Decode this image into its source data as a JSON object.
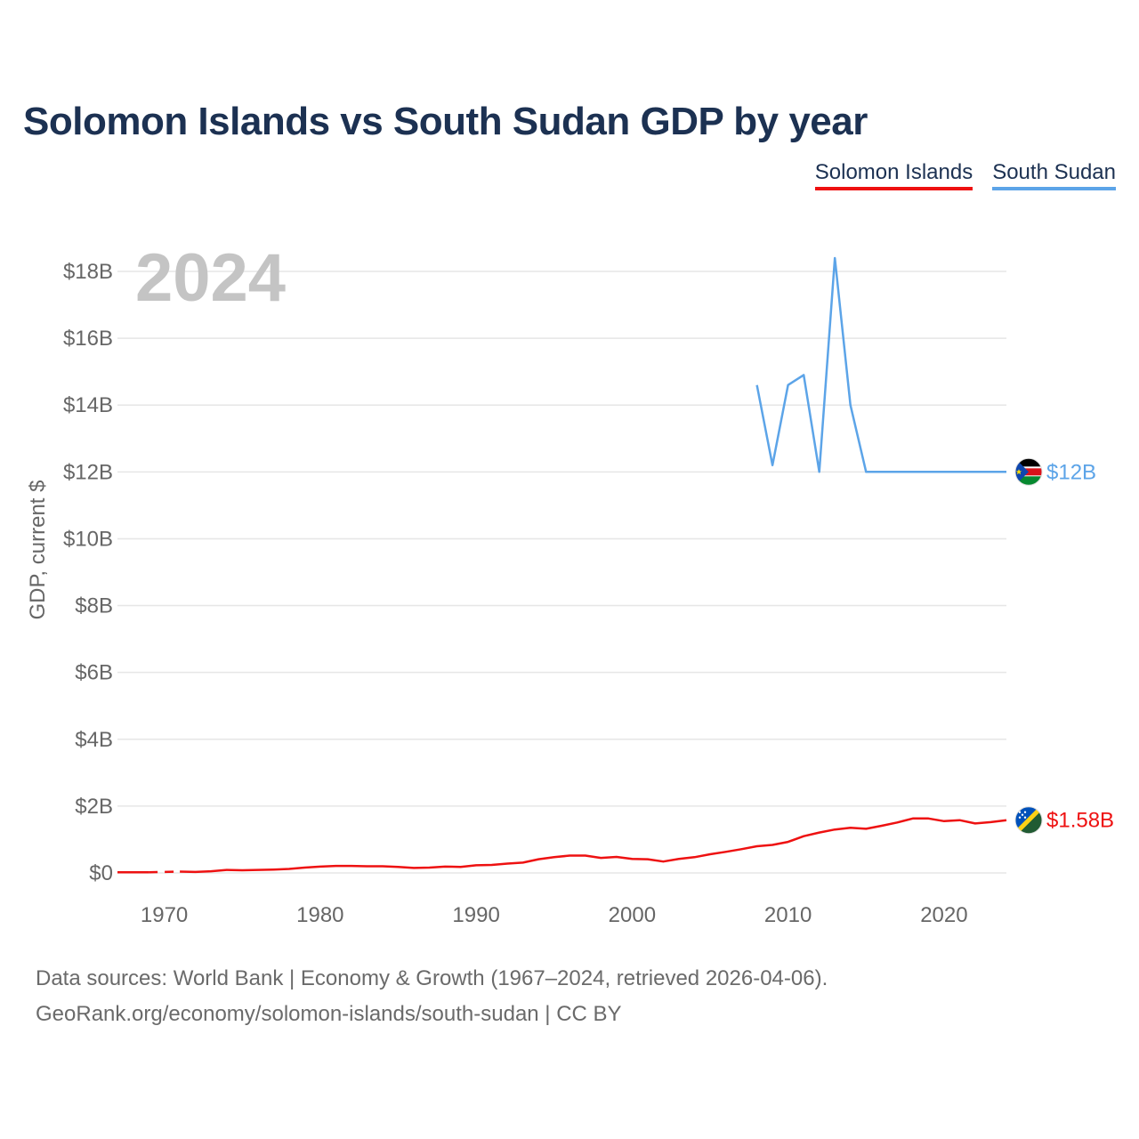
{
  "chart_data": {
    "type": "line",
    "title": "Solomon Islands vs South Sudan GDP by year",
    "ylabel": "GDP, current $",
    "xlabel": "",
    "year_overlay": "2024",
    "xlim": [
      1967,
      2024
    ],
    "ylim": [
      0,
      18
    ],
    "y_unit": "billions USD",
    "x_ticks": [
      1970,
      1980,
      1990,
      2000,
      2010,
      2020
    ],
    "y_ticks": [
      {
        "v": 0,
        "label": "$0"
      },
      {
        "v": 2,
        "label": "$2B"
      },
      {
        "v": 4,
        "label": "$4B"
      },
      {
        "v": 6,
        "label": "$6B"
      },
      {
        "v": 8,
        "label": "$8B"
      },
      {
        "v": 10,
        "label": "$10B"
      },
      {
        "v": 12,
        "label": "$12B"
      },
      {
        "v": 14,
        "label": "$14B"
      },
      {
        "v": 16,
        "label": "$16B"
      },
      {
        "v": 18,
        "label": "$18B"
      }
    ],
    "grid": true,
    "legend_position": "top-right",
    "series": [
      {
        "name": "Solomon Islands",
        "color": "#ee1111",
        "end_label": "$1.58B",
        "flag": "solomon-islands-flag-icon",
        "gap_years": [
          1969,
          1970,
          1971
        ],
        "points": [
          [
            1967,
            0.02
          ],
          [
            1968,
            0.02
          ],
          [
            1969,
            0.02
          ],
          [
            1970,
            0.03
          ],
          [
            1971,
            0.04
          ],
          [
            1972,
            0.03
          ],
          [
            1973,
            0.05
          ],
          [
            1974,
            0.09
          ],
          [
            1975,
            0.08
          ],
          [
            1976,
            0.09
          ],
          [
            1977,
            0.1
          ],
          [
            1978,
            0.12
          ],
          [
            1979,
            0.16
          ],
          [
            1980,
            0.19
          ],
          [
            1981,
            0.21
          ],
          [
            1982,
            0.21
          ],
          [
            1983,
            0.2
          ],
          [
            1984,
            0.2
          ],
          [
            1985,
            0.18
          ],
          [
            1986,
            0.15
          ],
          [
            1987,
            0.16
          ],
          [
            1988,
            0.19
          ],
          [
            1989,
            0.18
          ],
          [
            1990,
            0.23
          ],
          [
            1991,
            0.24
          ],
          [
            1992,
            0.28
          ],
          [
            1993,
            0.31
          ],
          [
            1994,
            0.41
          ],
          [
            1995,
            0.47
          ],
          [
            1996,
            0.52
          ],
          [
            1997,
            0.52
          ],
          [
            1998,
            0.45
          ],
          [
            1999,
            0.48
          ],
          [
            2000,
            0.42
          ],
          [
            2001,
            0.41
          ],
          [
            2002,
            0.34
          ],
          [
            2003,
            0.42
          ],
          [
            2004,
            0.47
          ],
          [
            2005,
            0.56
          ],
          [
            2006,
            0.63
          ],
          [
            2007,
            0.71
          ],
          [
            2008,
            0.8
          ],
          [
            2009,
            0.84
          ],
          [
            2010,
            0.93
          ],
          [
            2011,
            1.1
          ],
          [
            2012,
            1.21
          ],
          [
            2013,
            1.3
          ],
          [
            2014,
            1.35
          ],
          [
            2015,
            1.32
          ],
          [
            2016,
            1.41
          ],
          [
            2017,
            1.51
          ],
          [
            2018,
            1.63
          ],
          [
            2019,
            1.63
          ],
          [
            2020,
            1.55
          ],
          [
            2021,
            1.58
          ],
          [
            2022,
            1.48
          ],
          [
            2023,
            1.52
          ],
          [
            2024,
            1.58
          ]
        ]
      },
      {
        "name": "South Sudan",
        "color": "#5ca4e8",
        "end_label": "$12B",
        "flag": "south-sudan-flag-icon",
        "points": [
          [
            2008,
            14.6
          ],
          [
            2009,
            12.2
          ],
          [
            2010,
            14.6
          ],
          [
            2011,
            14.9
          ],
          [
            2012,
            12.0
          ],
          [
            2013,
            18.4
          ],
          [
            2014,
            14.0
          ],
          [
            2015,
            12.0
          ],
          [
            2016,
            12.0
          ],
          [
            2017,
            12.0
          ],
          [
            2018,
            12.0
          ],
          [
            2019,
            12.0
          ],
          [
            2020,
            12.0
          ],
          [
            2021,
            12.0
          ],
          [
            2022,
            12.0
          ],
          [
            2023,
            12.0
          ],
          [
            2024,
            12.0
          ]
        ]
      }
    ]
  },
  "source": {
    "line1": "Data sources: World Bank | Economy & Growth (1967–2024, retrieved 2026-04-06).",
    "line2": "GeoRank.org/economy/solomon-islands/south-sudan | CC BY"
  },
  "colors": {
    "title": "#1c3152",
    "grid": "#e6e6e6",
    "axis_text": "#666666",
    "year_overlay": "#c4c4c4"
  }
}
